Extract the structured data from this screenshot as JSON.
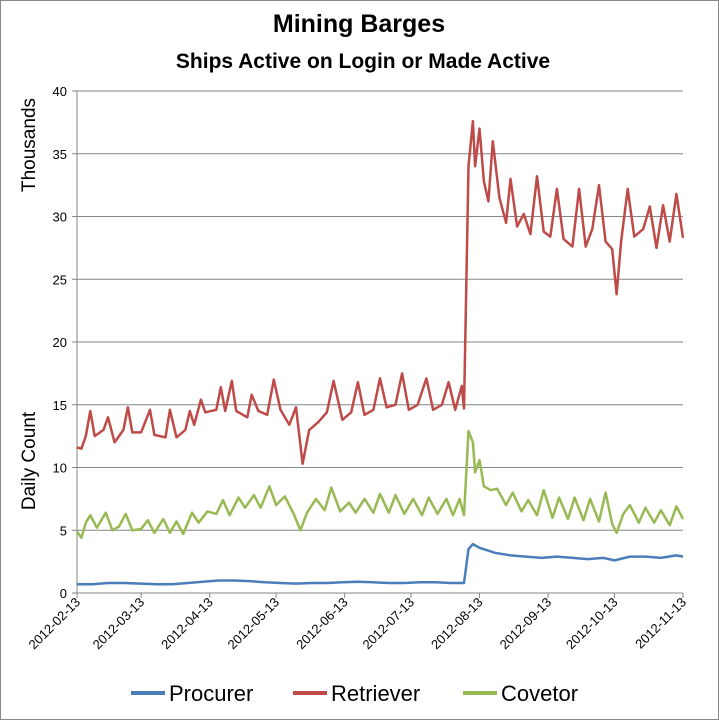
{
  "chart_data": {
    "type": "line",
    "title": "Mining Barges",
    "subtitle": "Ships Active on Login or Made Active",
    "ylabel_upper": "Thousands",
    "ylabel_lower": "Daily Count",
    "ylim": [
      0,
      40
    ],
    "yticks": [
      "0",
      "5",
      "10",
      "15",
      "20",
      "25",
      "30",
      "35",
      "40"
    ],
    "xlim": [
      "2012-02-13",
      "2012-11-13"
    ],
    "xticks": [
      "2012-02-13",
      "2012-03-13",
      "2012-04-13",
      "2012-05-13",
      "2012-06-13",
      "2012-07-13",
      "2012-08-13",
      "2012-09-13",
      "2012-10-13",
      "2012-11-13"
    ],
    "grid": "horizontal",
    "legend": "bottom",
    "series": [
      {
        "name": "Procurer",
        "color": "#4a7ebb",
        "points": [
          [
            "2012-02-13",
            0.7
          ],
          [
            "2012-02-20",
            0.7
          ],
          [
            "2012-02-27",
            0.8
          ],
          [
            "2012-03-05",
            0.8
          ],
          [
            "2012-03-13",
            0.75
          ],
          [
            "2012-03-20",
            0.7
          ],
          [
            "2012-03-27",
            0.7
          ],
          [
            "2012-04-03",
            0.8
          ],
          [
            "2012-04-10",
            0.9
          ],
          [
            "2012-04-17",
            1.0
          ],
          [
            "2012-04-24",
            1.0
          ],
          [
            "2012-05-01",
            0.95
          ],
          [
            "2012-05-08",
            0.85
          ],
          [
            "2012-05-15",
            0.8
          ],
          [
            "2012-05-22",
            0.75
          ],
          [
            "2012-05-29",
            0.8
          ],
          [
            "2012-06-05",
            0.8
          ],
          [
            "2012-06-12",
            0.85
          ],
          [
            "2012-06-19",
            0.9
          ],
          [
            "2012-06-26",
            0.85
          ],
          [
            "2012-07-03",
            0.8
          ],
          [
            "2012-07-10",
            0.8
          ],
          [
            "2012-07-17",
            0.85
          ],
          [
            "2012-07-24",
            0.85
          ],
          [
            "2012-07-31",
            0.8
          ],
          [
            "2012-08-06",
            0.8
          ],
          [
            "2012-08-08",
            3.5
          ],
          [
            "2012-08-10",
            3.9
          ],
          [
            "2012-08-13",
            3.6
          ],
          [
            "2012-08-20",
            3.2
          ],
          [
            "2012-08-27",
            3.0
          ],
          [
            "2012-09-03",
            2.9
          ],
          [
            "2012-09-10",
            2.8
          ],
          [
            "2012-09-17",
            2.9
          ],
          [
            "2012-09-24",
            2.8
          ],
          [
            "2012-10-01",
            2.7
          ],
          [
            "2012-10-08",
            2.8
          ],
          [
            "2012-10-13",
            2.6
          ],
          [
            "2012-10-20",
            2.9
          ],
          [
            "2012-10-27",
            2.9
          ],
          [
            "2012-11-03",
            2.8
          ],
          [
            "2012-11-10",
            3.0
          ],
          [
            "2012-11-13",
            2.9
          ]
        ]
      },
      {
        "name": "Retriever",
        "color": "#be4b48",
        "points": [
          [
            "2012-02-13",
            11.6
          ],
          [
            "2012-02-15",
            11.5
          ],
          [
            "2012-02-17",
            12.5
          ],
          [
            "2012-02-19",
            14.5
          ],
          [
            "2012-02-21",
            12.5
          ],
          [
            "2012-02-25",
            13.0
          ],
          [
            "2012-02-27",
            14.0
          ],
          [
            "2012-03-01",
            12.0
          ],
          [
            "2012-03-05",
            13.0
          ],
          [
            "2012-03-07",
            14.8
          ],
          [
            "2012-03-09",
            12.8
          ],
          [
            "2012-03-13",
            12.8
          ],
          [
            "2012-03-17",
            14.6
          ],
          [
            "2012-03-19",
            12.6
          ],
          [
            "2012-03-24",
            12.4
          ],
          [
            "2012-03-26",
            14.6
          ],
          [
            "2012-03-29",
            12.4
          ],
          [
            "2012-04-02",
            13.0
          ],
          [
            "2012-04-04",
            14.5
          ],
          [
            "2012-04-06",
            13.4
          ],
          [
            "2012-04-09",
            15.4
          ],
          [
            "2012-04-11",
            14.4
          ],
          [
            "2012-04-16",
            14.6
          ],
          [
            "2012-04-18",
            16.4
          ],
          [
            "2012-04-20",
            14.5
          ],
          [
            "2012-04-23",
            16.9
          ],
          [
            "2012-04-25",
            14.5
          ],
          [
            "2012-04-30",
            14.0
          ],
          [
            "2012-05-02",
            15.8
          ],
          [
            "2012-05-05",
            14.5
          ],
          [
            "2012-05-09",
            14.2
          ],
          [
            "2012-05-12",
            17.0
          ],
          [
            "2012-05-15",
            14.6
          ],
          [
            "2012-05-19",
            13.4
          ],
          [
            "2012-05-22",
            14.8
          ],
          [
            "2012-05-25",
            10.3
          ],
          [
            "2012-05-28",
            13.0
          ],
          [
            "2012-06-01",
            13.6
          ],
          [
            "2012-06-05",
            14.4
          ],
          [
            "2012-06-08",
            16.9
          ],
          [
            "2012-06-12",
            13.8
          ],
          [
            "2012-06-16",
            14.4
          ],
          [
            "2012-06-19",
            16.8
          ],
          [
            "2012-06-22",
            14.2
          ],
          [
            "2012-06-26",
            14.6
          ],
          [
            "2012-06-29",
            17.1
          ],
          [
            "2012-07-02",
            14.8
          ],
          [
            "2012-07-06",
            15.0
          ],
          [
            "2012-07-09",
            17.5
          ],
          [
            "2012-07-12",
            14.6
          ],
          [
            "2012-07-16",
            15.0
          ],
          [
            "2012-07-20",
            17.1
          ],
          [
            "2012-07-23",
            14.6
          ],
          [
            "2012-07-27",
            15.0
          ],
          [
            "2012-07-30",
            16.8
          ],
          [
            "2012-08-02",
            14.6
          ],
          [
            "2012-08-05",
            16.5
          ],
          [
            "2012-08-06",
            14.7
          ],
          [
            "2012-08-08",
            34.0
          ],
          [
            "2012-08-10",
            37.6
          ],
          [
            "2012-08-11",
            34.0
          ],
          [
            "2012-08-13",
            37.0
          ],
          [
            "2012-08-15",
            32.8
          ],
          [
            "2012-08-17",
            31.2
          ],
          [
            "2012-08-19",
            36.0
          ],
          [
            "2012-08-22",
            31.5
          ],
          [
            "2012-08-25",
            29.5
          ],
          [
            "2012-08-27",
            33.0
          ],
          [
            "2012-08-30",
            29.2
          ],
          [
            "2012-09-02",
            30.2
          ],
          [
            "2012-09-05",
            28.6
          ],
          [
            "2012-09-08",
            33.2
          ],
          [
            "2012-09-11",
            28.8
          ],
          [
            "2012-09-14",
            28.4
          ],
          [
            "2012-09-17",
            32.2
          ],
          [
            "2012-09-20",
            28.2
          ],
          [
            "2012-09-24",
            27.6
          ],
          [
            "2012-09-27",
            32.2
          ],
          [
            "2012-09-30",
            27.6
          ],
          [
            "2012-10-03",
            29.0
          ],
          [
            "2012-10-06",
            32.5
          ],
          [
            "2012-10-09",
            28.0
          ],
          [
            "2012-10-12",
            27.4
          ],
          [
            "2012-10-14",
            23.8
          ],
          [
            "2012-10-16",
            28.0
          ],
          [
            "2012-10-19",
            32.2
          ],
          [
            "2012-10-22",
            28.4
          ],
          [
            "2012-10-26",
            29.0
          ],
          [
            "2012-10-29",
            30.8
          ],
          [
            "2012-11-01",
            27.5
          ],
          [
            "2012-11-04",
            30.9
          ],
          [
            "2012-11-07",
            28.0
          ],
          [
            "2012-11-10",
            31.8
          ],
          [
            "2012-11-13",
            28.3
          ]
        ]
      },
      {
        "name": "Covetor",
        "color": "#98b954",
        "points": [
          [
            "2012-02-13",
            4.9
          ],
          [
            "2012-02-15",
            4.4
          ],
          [
            "2012-02-17",
            5.6
          ],
          [
            "2012-02-19",
            6.2
          ],
          [
            "2012-02-22",
            5.2
          ],
          [
            "2012-02-26",
            6.4
          ],
          [
            "2012-02-29",
            5.0
          ],
          [
            "2012-03-03",
            5.3
          ],
          [
            "2012-03-06",
            6.3
          ],
          [
            "2012-03-09",
            5.0
          ],
          [
            "2012-03-13",
            5.1
          ],
          [
            "2012-03-16",
            5.8
          ],
          [
            "2012-03-19",
            4.8
          ],
          [
            "2012-03-23",
            5.9
          ],
          [
            "2012-03-26",
            4.8
          ],
          [
            "2012-03-29",
            5.7
          ],
          [
            "2012-04-01",
            4.7
          ],
          [
            "2012-04-05",
            6.4
          ],
          [
            "2012-04-08",
            5.6
          ],
          [
            "2012-04-12",
            6.5
          ],
          [
            "2012-04-16",
            6.3
          ],
          [
            "2012-04-19",
            7.4
          ],
          [
            "2012-04-22",
            6.2
          ],
          [
            "2012-04-26",
            7.6
          ],
          [
            "2012-04-29",
            6.8
          ],
          [
            "2012-05-03",
            7.8
          ],
          [
            "2012-05-06",
            6.8
          ],
          [
            "2012-05-10",
            8.5
          ],
          [
            "2012-05-13",
            7.0
          ],
          [
            "2012-05-17",
            7.7
          ],
          [
            "2012-05-21",
            6.3
          ],
          [
            "2012-05-24",
            5.0
          ],
          [
            "2012-05-27",
            6.4
          ],
          [
            "2012-05-31",
            7.5
          ],
          [
            "2012-06-04",
            6.6
          ],
          [
            "2012-06-07",
            8.4
          ],
          [
            "2012-06-11",
            6.5
          ],
          [
            "2012-06-15",
            7.2
          ],
          [
            "2012-06-18",
            6.4
          ],
          [
            "2012-06-22",
            7.5
          ],
          [
            "2012-06-26",
            6.4
          ],
          [
            "2012-06-29",
            7.9
          ],
          [
            "2012-07-03",
            6.4
          ],
          [
            "2012-07-06",
            7.8
          ],
          [
            "2012-07-10",
            6.3
          ],
          [
            "2012-07-14",
            7.5
          ],
          [
            "2012-07-18",
            6.2
          ],
          [
            "2012-07-21",
            7.6
          ],
          [
            "2012-07-25",
            6.3
          ],
          [
            "2012-07-29",
            7.5
          ],
          [
            "2012-08-01",
            6.2
          ],
          [
            "2012-08-04",
            7.5
          ],
          [
            "2012-08-06",
            6.2
          ],
          [
            "2012-08-08",
            12.9
          ],
          [
            "2012-08-10",
            12.0
          ],
          [
            "2012-08-11",
            9.6
          ],
          [
            "2012-08-13",
            10.6
          ],
          [
            "2012-08-15",
            8.5
          ],
          [
            "2012-08-18",
            8.2
          ],
          [
            "2012-08-21",
            8.3
          ],
          [
            "2012-08-25",
            7.0
          ],
          [
            "2012-08-28",
            8.0
          ],
          [
            "2012-09-01",
            6.5
          ],
          [
            "2012-09-04",
            7.4
          ],
          [
            "2012-09-08",
            6.2
          ],
          [
            "2012-09-11",
            8.2
          ],
          [
            "2012-09-15",
            6.0
          ],
          [
            "2012-09-18",
            7.6
          ],
          [
            "2012-09-22",
            5.9
          ],
          [
            "2012-09-25",
            7.6
          ],
          [
            "2012-09-29",
            5.8
          ],
          [
            "2012-10-02",
            7.5
          ],
          [
            "2012-10-06",
            5.7
          ],
          [
            "2012-10-09",
            8.0
          ],
          [
            "2012-10-12",
            5.5
          ],
          [
            "2012-10-14",
            4.8
          ],
          [
            "2012-10-17",
            6.3
          ],
          [
            "2012-10-20",
            7.0
          ],
          [
            "2012-10-24",
            5.6
          ],
          [
            "2012-10-27",
            6.8
          ],
          [
            "2012-10-31",
            5.6
          ],
          [
            "2012-11-03",
            6.6
          ],
          [
            "2012-11-07",
            5.4
          ],
          [
            "2012-11-10",
            6.9
          ],
          [
            "2012-11-13",
            5.9
          ]
        ]
      }
    ]
  }
}
